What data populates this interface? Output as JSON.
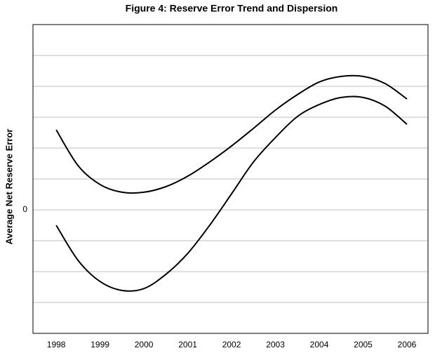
{
  "chart_data": {
    "type": "line",
    "title": "Figure 4: Reserve Error Trend and Dispersion",
    "y_label": "Average Net Reserve Error",
    "x": [
      1998,
      1998.5,
      1999,
      1999.5,
      2000,
      2000.5,
      2001,
      2001.5,
      2002,
      2002.5,
      2003,
      2003.5,
      2004,
      2004.5,
      2005,
      2005.5,
      2006
    ],
    "series": [
      {
        "color": "#000000",
        "values": [
          2.59,
          1.43,
          0.82,
          0.57,
          0.57,
          0.75,
          1.09,
          1.55,
          2.07,
          2.64,
          3.23,
          3.73,
          4.14,
          4.32,
          4.32,
          4.09,
          3.59
        ]
      },
      {
        "color": "#000000",
        "values": [
          -0.5,
          -1.64,
          -2.32,
          -2.61,
          -2.55,
          -2.09,
          -1.41,
          -0.5,
          0.52,
          1.55,
          2.34,
          3.02,
          3.41,
          3.64,
          3.64,
          3.36,
          2.77
        ]
      }
    ],
    "xlim": [
      1997.47,
      2006.48
    ],
    "xticks": [
      1998,
      1999,
      2000,
      2001,
      2002,
      2003,
      2004,
      2005,
      2006
    ],
    "ylim": [
      -4,
      6
    ],
    "yticks": [
      {
        "value": -3,
        "label": null
      },
      {
        "value": -2,
        "label": null
      },
      {
        "value": -1,
        "label": null
      },
      0,
      {
        "value": 1,
        "label": null
      },
      {
        "value": 2,
        "label": null
      },
      {
        "value": 3,
        "label": null
      },
      {
        "value": 4,
        "label": null
      },
      {
        "value": 5,
        "label": null
      }
    ],
    "grid": true
  }
}
